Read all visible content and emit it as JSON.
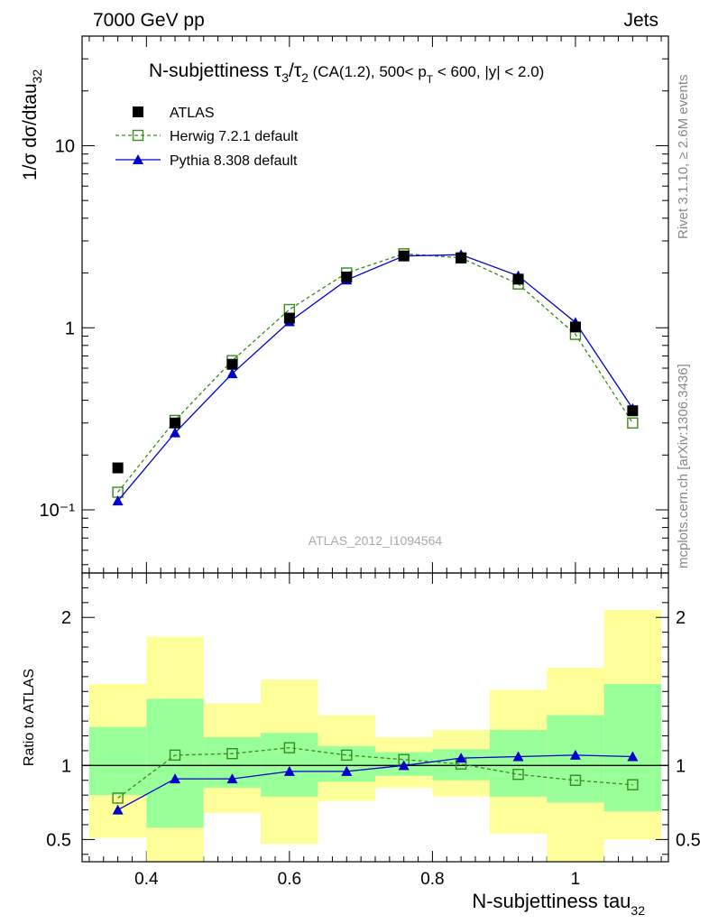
{
  "header": {
    "energy_label": "7000 GeV pp",
    "process_label": "Jets"
  },
  "side_text": {
    "rivet": "Rivet 3.1.10, ≥ 2.6M events",
    "mcplots": "mcplots.cern.ch [arXiv:1306.3436]"
  },
  "chart_data": [
    {
      "type": "line",
      "panel": "main",
      "title": "N-subjettiness τ₃/τ₂ (CA(1.2), 500< p_T < 600, |y| < 2.0)",
      "title_main": "N-subjettiness τ",
      "title_sub1": "3",
      "title_mid": "/τ",
      "title_sub2": "2",
      "title_cut_a": " (CA(1.2), 500< p",
      "title_cut_sub": "T",
      "title_cut_b": " < 600, |y| < 2.0)",
      "ylabel": "1/σ dσ/dtau",
      "ylabel_sub": "32",
      "yscale": "log",
      "xlim": [
        0.31,
        1.13
      ],
      "ylim": [
        0.045,
        40
      ],
      "y_tick_labels": [
        "10⁻¹",
        "1",
        "10"
      ],
      "watermark": "ATLAS_2012_I1094564",
      "legend_placement": "top-left",
      "series": [
        {
          "name": "ATLAS",
          "color": "#000000",
          "marker": "filled-square",
          "x": [
            0.36,
            0.44,
            0.52,
            0.6,
            0.68,
            0.76,
            0.84,
            0.92,
            1.0,
            1.08
          ],
          "values": [
            0.17,
            0.3,
            0.63,
            1.13,
            1.9,
            2.48,
            2.42,
            1.85,
            1.01,
            0.35
          ]
        },
        {
          "name": "Herwig 7.2.1 default",
          "color": "#3a8a1c",
          "marker": "open-square",
          "dash": "4,3",
          "x": [
            0.36,
            0.44,
            0.52,
            0.6,
            0.68,
            0.76,
            0.84,
            0.92,
            1.0,
            1.08
          ],
          "values": [
            0.125,
            0.31,
            0.66,
            1.26,
            2.0,
            2.55,
            2.42,
            1.74,
            0.92,
            0.3
          ]
        },
        {
          "name": "Pythia 8.308 default",
          "color": "#0000cc",
          "marker": "filled-triangle",
          "x": [
            0.36,
            0.44,
            0.52,
            0.6,
            0.68,
            0.76,
            0.84,
            0.92,
            1.0,
            1.08
          ],
          "values": [
            0.112,
            0.265,
            0.56,
            1.08,
            1.83,
            2.48,
            2.52,
            1.93,
            1.07,
            0.36
          ]
        }
      ]
    },
    {
      "type": "line",
      "panel": "ratio",
      "ylabel": "Ratio to ATLAS",
      "xlabel": "N-subjettiness tau",
      "xlabel_sub": "32",
      "xlim": [
        0.31,
        1.13
      ],
      "ylim": [
        0.35,
        2.3
      ],
      "x_tick_labels": [
        "0.4",
        "0.6",
        "0.8",
        "1"
      ],
      "y_tick_labels": [
        "0.5",
        "1",
        "2"
      ],
      "reference_line": 1,
      "bins": [
        [
          0.32,
          0.4
        ],
        [
          0.4,
          0.48
        ],
        [
          0.48,
          0.56
        ],
        [
          0.56,
          0.64
        ],
        [
          0.64,
          0.72
        ],
        [
          0.72,
          0.8
        ],
        [
          0.8,
          0.88
        ],
        [
          0.88,
          0.96
        ],
        [
          0.96,
          1.04
        ],
        [
          1.04,
          1.12
        ]
      ],
      "uncertainty_bands": [
        {
          "name": "inner",
          "color": "#99ff99",
          "low": [
            0.8,
            0.58,
            0.85,
            0.79,
            0.89,
            0.93,
            0.9,
            0.79,
            0.75,
            0.69
          ],
          "high": [
            1.26,
            1.45,
            1.19,
            1.22,
            1.13,
            1.09,
            1.11,
            1.24,
            1.34,
            1.55
          ]
        },
        {
          "name": "outer",
          "color": "#ffff99",
          "low": [
            0.51,
            0.34,
            0.68,
            0.47,
            0.76,
            0.85,
            0.79,
            0.54,
            0.34,
            0.5
          ],
          "high": [
            1.55,
            1.87,
            1.42,
            1.58,
            1.34,
            1.19,
            1.24,
            1.51,
            1.66,
            2.05
          ]
        }
      ],
      "series": [
        {
          "name": "Herwig 7.2.1 default",
          "color": "#3a8a1c",
          "marker": "open-square",
          "dash": "4,3",
          "x": [
            0.36,
            0.44,
            0.52,
            0.6,
            0.68,
            0.76,
            0.84,
            0.92,
            1.0,
            1.08
          ],
          "values": [
            0.78,
            1.07,
            1.08,
            1.12,
            1.07,
            1.04,
            1.01,
            0.94,
            0.9,
            0.87
          ]
        },
        {
          "name": "Pythia 8.308 default",
          "color": "#0000cc",
          "marker": "filled-triangle",
          "x": [
            0.36,
            0.44,
            0.52,
            0.6,
            0.68,
            0.76,
            0.84,
            0.92,
            1.0,
            1.08
          ],
          "values": [
            0.7,
            0.91,
            0.91,
            0.96,
            0.96,
            1.0,
            1.05,
            1.06,
            1.07,
            1.06
          ]
        }
      ]
    }
  ]
}
